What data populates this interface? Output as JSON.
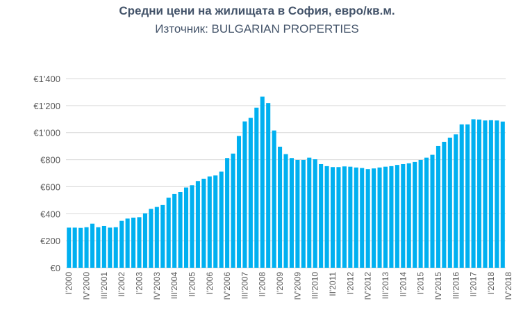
{
  "chart_data": {
    "type": "bar",
    "title": "Средни цени на жилищата в София, евро/кв.м.",
    "subtitle": "Източник: BULGARIAN PROPERTIES",
    "xlabel": "",
    "ylabel": "",
    "ylim": [
      0,
      1400
    ],
    "yticks": [
      "€0",
      "€200",
      "€400",
      "€600",
      "€800",
      "€1'000",
      "€1'200",
      "€1'400"
    ],
    "ytick_values": [
      0,
      200,
      400,
      600,
      800,
      1000,
      1200,
      1400
    ],
    "grid": true,
    "color": "#00b0f0",
    "quarters": [
      "I",
      "II",
      "III",
      "IV"
    ],
    "start_year": 2000,
    "xtick_labels": [
      "I'2000",
      "IV'2000",
      "III'2001",
      "II'2002",
      "I'2003",
      "IV'2003",
      "III'2004",
      "II'2005",
      "I'2006",
      "IV'2006",
      "III'2007",
      "II'2008",
      "I'2009",
      "IV'2009",
      "III'2010",
      "II'2011",
      "I'2012",
      "IV'2012",
      "III'2013",
      "II'2014",
      "I'2015",
      "IV'2015",
      "III'2016",
      "II'2017",
      "I'2018",
      "IV'2018"
    ],
    "values": [
      297,
      297,
      295,
      300,
      326,
      300,
      309,
      297,
      300,
      347,
      364,
      371,
      374,
      403,
      436,
      450,
      464,
      518,
      546,
      561,
      594,
      611,
      642,
      659,
      676,
      683,
      712,
      812,
      845,
      975,
      1083,
      1109,
      1185,
      1267,
      1219,
      1016,
      896,
      841,
      812,
      798,
      798,
      815,
      803,
      767,
      752,
      745,
      745,
      750,
      748,
      742,
      738,
      730,
      735,
      742,
      748,
      752,
      761,
      767,
      773,
      783,
      798,
      815,
      836,
      901,
      932,
      963,
      987,
      1061,
      1061,
      1099,
      1097,
      1090,
      1092,
      1090,
      1082
    ]
  }
}
